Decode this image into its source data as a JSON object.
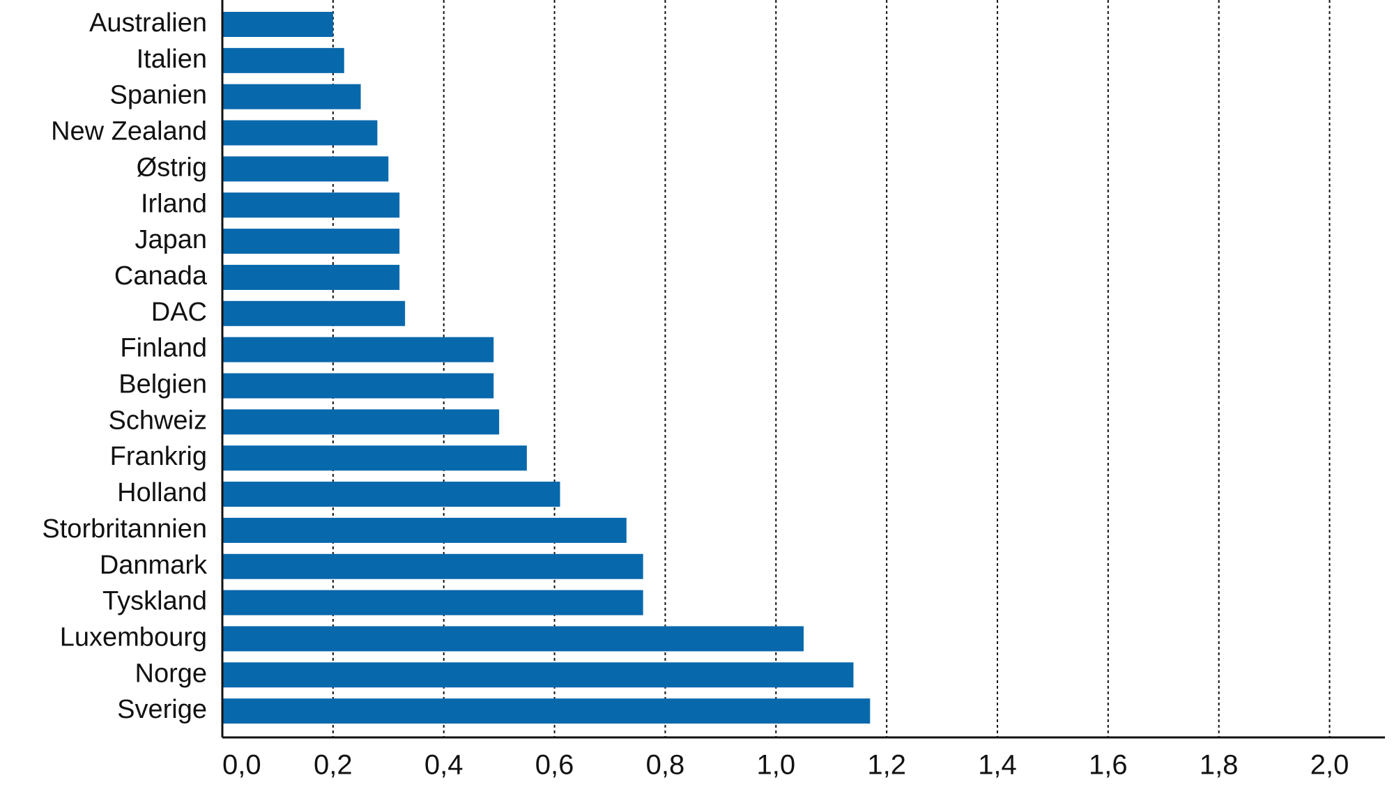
{
  "chart_data": {
    "type": "barh",
    "categories": [
      "Australien",
      "Italien",
      "Spanien",
      "New Zealand",
      "Østrig",
      "Irland",
      "Japan",
      "Canada",
      "DAC",
      "Finland",
      "Belgien",
      "Schweiz",
      "Frankrig",
      "Holland",
      "Storbritannien",
      "Danmark",
      "Tyskland",
      "Luxembourg",
      "Norge",
      "Sverige"
    ],
    "values": [
      0.2,
      0.22,
      0.25,
      0.28,
      0.3,
      0.32,
      0.32,
      0.32,
      0.33,
      0.49,
      0.49,
      0.5,
      0.55,
      0.61,
      0.73,
      0.76,
      0.76,
      1.05,
      1.14,
      1.17
    ],
    "color": "#0868ac",
    "xlim": [
      0,
      2.1
    ],
    "xticks": [
      {
        "value": 0,
        "label": "0,0"
      },
      {
        "value": 0.2,
        "label": "0,2"
      },
      {
        "value": 0.4,
        "label": "0,4"
      },
      {
        "value": 0.6,
        "label": "0,6"
      },
      {
        "value": 0.8,
        "label": "0,8"
      },
      {
        "value": 1.0,
        "label": "1,0"
      },
      {
        "value": 1.2,
        "label": "1,2"
      },
      {
        "value": 1.4,
        "label": "1,4"
      },
      {
        "value": 1.6,
        "label": "1,6"
      },
      {
        "value": 1.8,
        "label": "1,8"
      },
      {
        "value": 2.0,
        "label": "2,0"
      }
    ],
    "grid": true
  }
}
